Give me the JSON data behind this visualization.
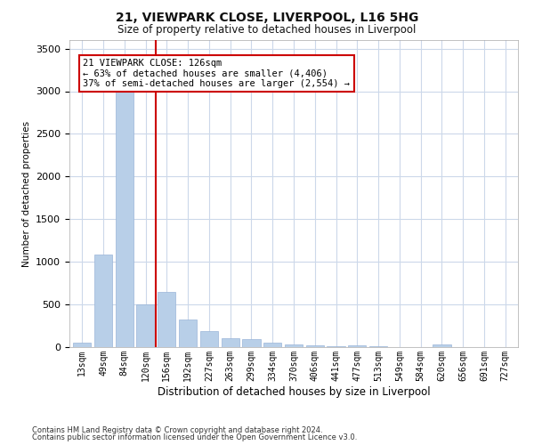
{
  "title": "21, VIEWPARK CLOSE, LIVERPOOL, L16 5HG",
  "subtitle": "Size of property relative to detached houses in Liverpool",
  "xlabel": "Distribution of detached houses by size in Liverpool",
  "ylabel": "Number of detached properties",
  "footnote1": "Contains HM Land Registry data © Crown copyright and database right 2024.",
  "footnote2": "Contains public sector information licensed under the Open Government Licence v3.0.",
  "annotation_title": "21 VIEWPARK CLOSE: 126sqm",
  "annotation_line1": "← 63% of detached houses are smaller (4,406)",
  "annotation_line2": "37% of semi-detached houses are larger (2,554) →",
  "bar_color": "#b8cfe8",
  "bar_edge_color": "#9ab5d8",
  "vline_color": "#cc0000",
  "annotation_box_edgecolor": "#cc0000",
  "categories": [
    "13sqm",
    "49sqm",
    "84sqm",
    "120sqm",
    "156sqm",
    "192sqm",
    "227sqm",
    "263sqm",
    "299sqm",
    "334sqm",
    "370sqm",
    "406sqm",
    "441sqm",
    "477sqm",
    "513sqm",
    "549sqm",
    "584sqm",
    "620sqm",
    "656sqm",
    "691sqm",
    "727sqm"
  ],
  "values": [
    55,
    1090,
    3050,
    500,
    645,
    325,
    185,
    100,
    95,
    50,
    30,
    20,
    12,
    25,
    8,
    5,
    5,
    28,
    5,
    5,
    5
  ],
  "ylim": [
    0,
    3600
  ],
  "yticks": [
    0,
    500,
    1000,
    1500,
    2000,
    2500,
    3000,
    3500
  ],
  "vline_x_idx": 3.5,
  "bg_color": "#ffffff",
  "grid_color": "#ccd8ea"
}
